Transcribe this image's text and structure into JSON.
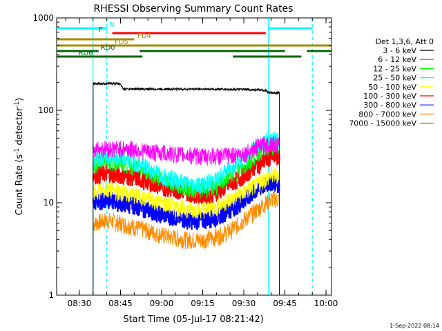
{
  "chart_data": {
    "type": "line",
    "title": "RHESSI Observing Summary Count Rates",
    "xlabel": "Start Time (05-Jul-17 08:21:42)",
    "ylabel_main": "Count Rate (s",
    "ylabel_sup1": "-1",
    "ylabel_mid": " detector",
    "ylabel_sup2": "-1",
    "ylabel_end": ")",
    "yscale": "log",
    "ylim": [
      1,
      1000
    ],
    "xlim": [
      "08:21:42",
      "10:02:00"
    ],
    "x_ticks": [
      "08:30",
      "08:45",
      "09:00",
      "09:15",
      "09:30",
      "09:45",
      "10:00"
    ],
    "y_ticks": [
      "1",
      "10",
      "100",
      "1000"
    ],
    "legend_title": "Det 1,3,6, Att 0",
    "legend_position": "right",
    "series": [
      {
        "name": "3 - 6 keV",
        "color": "#000000",
        "x": [
          "08:35",
          "08:44",
          "08:45",
          "08:46",
          "09:00",
          "09:15",
          "09:30",
          "09:38",
          "09:39",
          "09:43"
        ],
        "values": [
          195,
          195,
          195,
          170,
          170,
          170,
          168,
          165,
          155,
          155
        ]
      },
      {
        "name": "6 - 12 keV",
        "color": "#ff00ff",
        "x": [
          "08:35",
          "08:40",
          "08:45",
          "08:50",
          "08:55",
          "09:00",
          "09:05",
          "09:10",
          "09:15",
          "09:20",
          "09:25",
          "09:30",
          "09:35",
          "09:40",
          "09:43"
        ],
        "values": [
          38,
          39,
          39,
          38,
          36,
          35,
          34,
          33,
          32,
          32,
          33,
          34,
          40,
          45,
          42
        ]
      },
      {
        "name": "12 - 25 keV",
        "color": "#00ff00",
        "x": [
          "08:35",
          "08:40",
          "08:45",
          "08:50",
          "08:55",
          "09:00",
          "09:05",
          "09:10",
          "09:15",
          "09:20",
          "09:25",
          "09:30",
          "09:35",
          "09:40",
          "09:43"
        ],
        "values": [
          26,
          28,
          27,
          25,
          22,
          18,
          16,
          14,
          14,
          15,
          20,
          24,
          35,
          42,
          40
        ]
      },
      {
        "name": "25 - 50 keV",
        "color": "#00ffff",
        "x": [
          "08:35",
          "08:40",
          "08:45",
          "08:50",
          "08:55",
          "09:00",
          "09:05",
          "09:10",
          "09:15",
          "09:20",
          "09:25",
          "09:30",
          "09:35",
          "09:40",
          "09:43"
        ],
        "values": [
          30,
          31,
          30,
          28,
          24,
          20,
          18,
          16,
          16,
          18,
          24,
          30,
          42,
          50,
          46
        ]
      },
      {
        "name": "50 - 100 keV",
        "color": "#ffff00",
        "x": [
          "08:35",
          "08:40",
          "08:45",
          "08:50",
          "08:55",
          "09:00",
          "09:05",
          "09:10",
          "09:15",
          "09:20",
          "09:25",
          "09:30",
          "09:35",
          "09:40",
          "09:43"
        ],
        "values": [
          13,
          14,
          13,
          12,
          11,
          10,
          9,
          8.5,
          8.5,
          9,
          11,
          13,
          16,
          20,
          20
        ]
      },
      {
        "name": "100 - 300 keV",
        "color": "#ff0000",
        "x": [
          "08:35",
          "08:40",
          "08:45",
          "08:50",
          "08:55",
          "09:00",
          "09:05",
          "09:10",
          "09:15",
          "09:20",
          "09:25",
          "09:30",
          "09:35",
          "09:40",
          "09:43"
        ],
        "values": [
          20,
          21,
          20,
          19,
          17,
          15,
          14,
          13,
          12,
          13,
          16,
          20,
          26,
          32,
          31
        ]
      },
      {
        "name": "300 - 800 keV",
        "color": "#0000ff",
        "x": [
          "08:35",
          "08:40",
          "08:45",
          "08:50",
          "08:55",
          "09:00",
          "09:05",
          "09:10",
          "09:15",
          "09:20",
          "09:25",
          "09:30",
          "09:35",
          "09:40",
          "09:43"
        ],
        "values": [
          10,
          11,
          10,
          9.5,
          8.5,
          7.5,
          7,
          6.5,
          6.5,
          7,
          8.5,
          10.5,
          14,
          17,
          16
        ]
      },
      {
        "name": "800 - 7000 keV",
        "color": "#ff8c00",
        "x": [
          "08:35",
          "08:40",
          "08:45",
          "08:50",
          "08:55",
          "09:00",
          "09:05",
          "09:10",
          "09:15",
          "09:20",
          "09:25",
          "09:30",
          "09:35",
          "09:40",
          "09:43"
        ],
        "values": [
          6,
          6.5,
          6,
          5.5,
          5,
          4.5,
          4.2,
          4,
          4,
          4.3,
          5,
          6.5,
          8.5,
          11,
          11
        ]
      },
      {
        "name": "7000 - 15000 keV",
        "color": "#996600",
        "x": [],
        "values": []
      }
    ],
    "flags": [
      {
        "name": "N",
        "color": "#00ffff",
        "row": 1,
        "intervals": [
          [
            "08:21:42",
            "08:40"
          ],
          [
            "09:39",
            "09:55"
          ]
        ]
      },
      {
        "name": "F",
        "color": "#ff0000",
        "row": 2,
        "intervals": [
          [
            "08:42",
            "09:38"
          ]
        ]
      },
      {
        "name": "FD4",
        "color": "#aa8800",
        "row": 3,
        "intervals": [
          [
            "08:21:42",
            "08:50"
          ]
        ]
      },
      {
        "name": "FD5",
        "color": "#aa8800",
        "row": 4,
        "intervals": [
          [
            "08:21:42",
            "10:02"
          ]
        ]
      },
      {
        "name": "RD0",
        "color": "#006600",
        "row": 5,
        "intervals": [
          [
            "08:21:42",
            "08:37"
          ],
          [
            "08:52",
            "09:45"
          ],
          [
            "09:53",
            "10:02"
          ]
        ]
      },
      {
        "name": "RD6",
        "color": "#006600",
        "row": 6,
        "intervals": [
          [
            "08:21:42",
            "08:53"
          ],
          [
            "09:26",
            "09:51"
          ]
        ]
      }
    ],
    "marker_lines": [
      {
        "color": "#00ffff",
        "style": "solid",
        "x": "08:35"
      },
      {
        "color": "#00ffff",
        "style": "dashed",
        "x": "08:40"
      },
      {
        "color": "#00ffff",
        "style": "solid",
        "x": "09:39"
      },
      {
        "color": "#00ffff",
        "style": "dashed",
        "x": "09:55"
      }
    ],
    "footer": "1-Sep-2022 08:14"
  }
}
